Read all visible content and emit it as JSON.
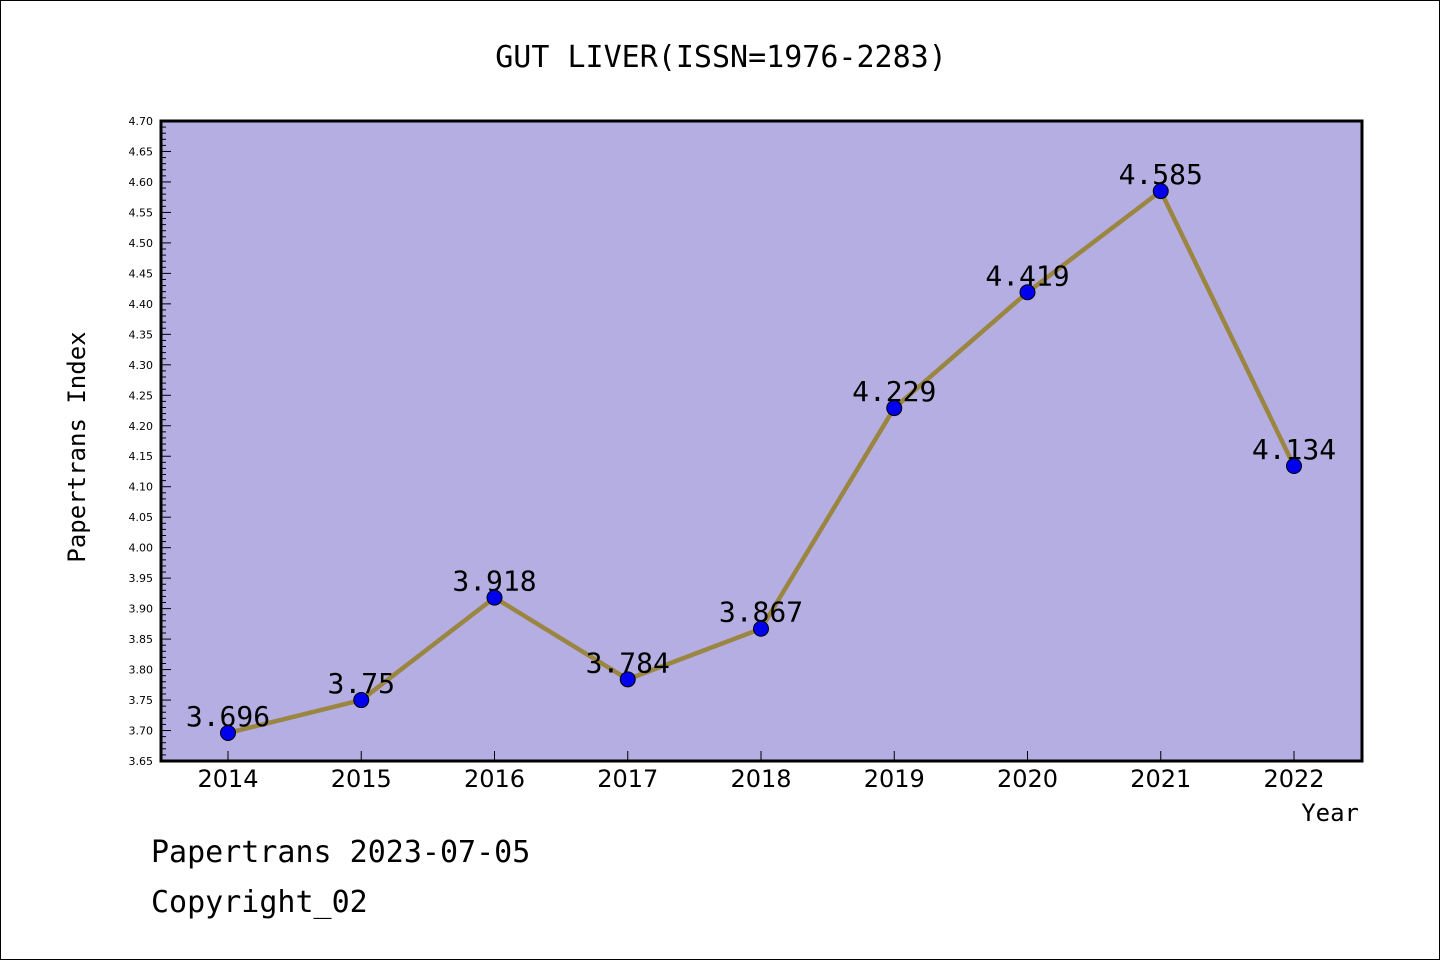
{
  "chart_data": {
    "type": "line",
    "title": "GUT LIVER(ISSN=1976-2283)",
    "xlabel": "Year",
    "ylabel": "Papertrans Index",
    "categories": [
      "2014",
      "2015",
      "2016",
      "2017",
      "2018",
      "2019",
      "2020",
      "2021",
      "2022"
    ],
    "series": [
      {
        "values": [
          3.696,
          3.75,
          3.918,
          3.784,
          3.867,
          4.229,
          4.419,
          4.585,
          4.134
        ],
        "labels": [
          "3.696",
          "3.75",
          "3.918",
          "3.784",
          "3.867",
          "4.229",
          "4.419",
          "4.585",
          "4.134"
        ]
      }
    ],
    "ylim": [
      3.65,
      4.7
    ],
    "yticks": [
      "3.65",
      "3.70",
      "3.75",
      "3.80",
      "3.85",
      "3.90",
      "3.95",
      "4.00",
      "4.05",
      "4.10",
      "4.15",
      "4.20",
      "4.25",
      "4.30",
      "4.35",
      "4.40",
      "4.45",
      "4.50",
      "4.55",
      "4.60",
      "4.65",
      "4.70"
    ],
    "grid": false,
    "colors": {
      "plot_background": "#b5aee2",
      "line": "#9a8640",
      "marker": "#0000ee"
    }
  },
  "footer": {
    "line1": "Papertrans 2023-07-05",
    "line2": "Copyright_02"
  }
}
